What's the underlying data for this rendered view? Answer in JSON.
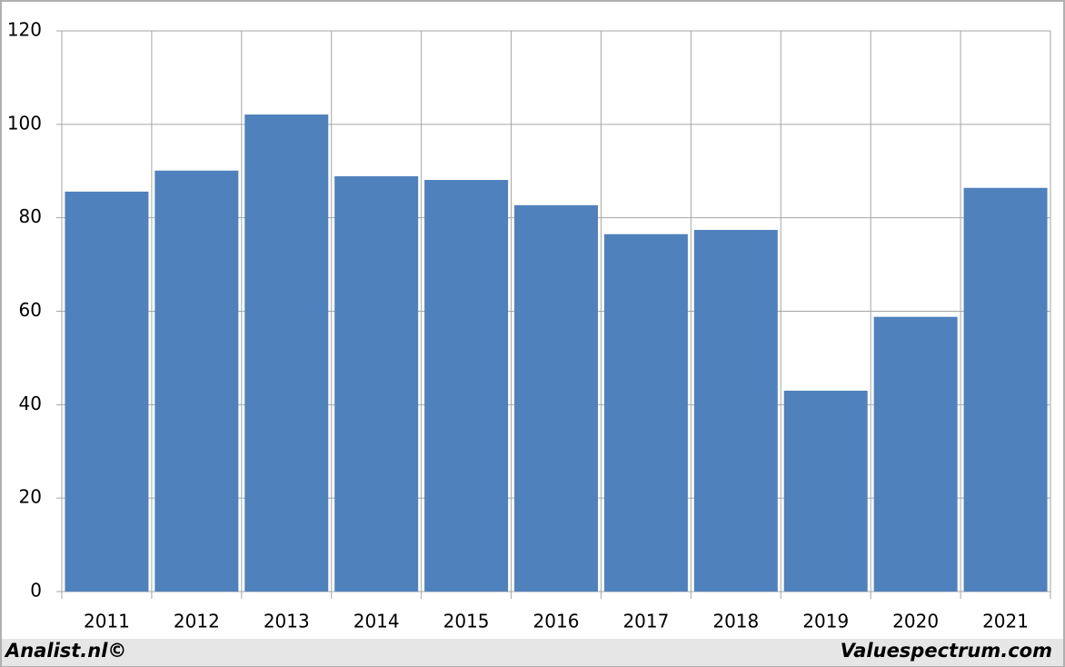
{
  "chart_data": {
    "type": "bar",
    "categories": [
      "2011",
      "2012",
      "2013",
      "2014",
      "2015",
      "2016",
      "2017",
      "2018",
      "2019",
      "2020",
      "2021"
    ],
    "values": [
      85.6,
      90.1,
      102.1,
      88.9,
      88.1,
      82.7,
      76.5,
      77.4,
      43.0,
      58.8,
      86.4
    ],
    "color": "#4f81bd",
    "ylim": [
      0,
      120
    ],
    "yticks": [
      0,
      20,
      40,
      60,
      80,
      100,
      120
    ],
    "grid": true
  },
  "footer": {
    "left": "Analist.nl©",
    "right": "Valuespectrum.com"
  }
}
